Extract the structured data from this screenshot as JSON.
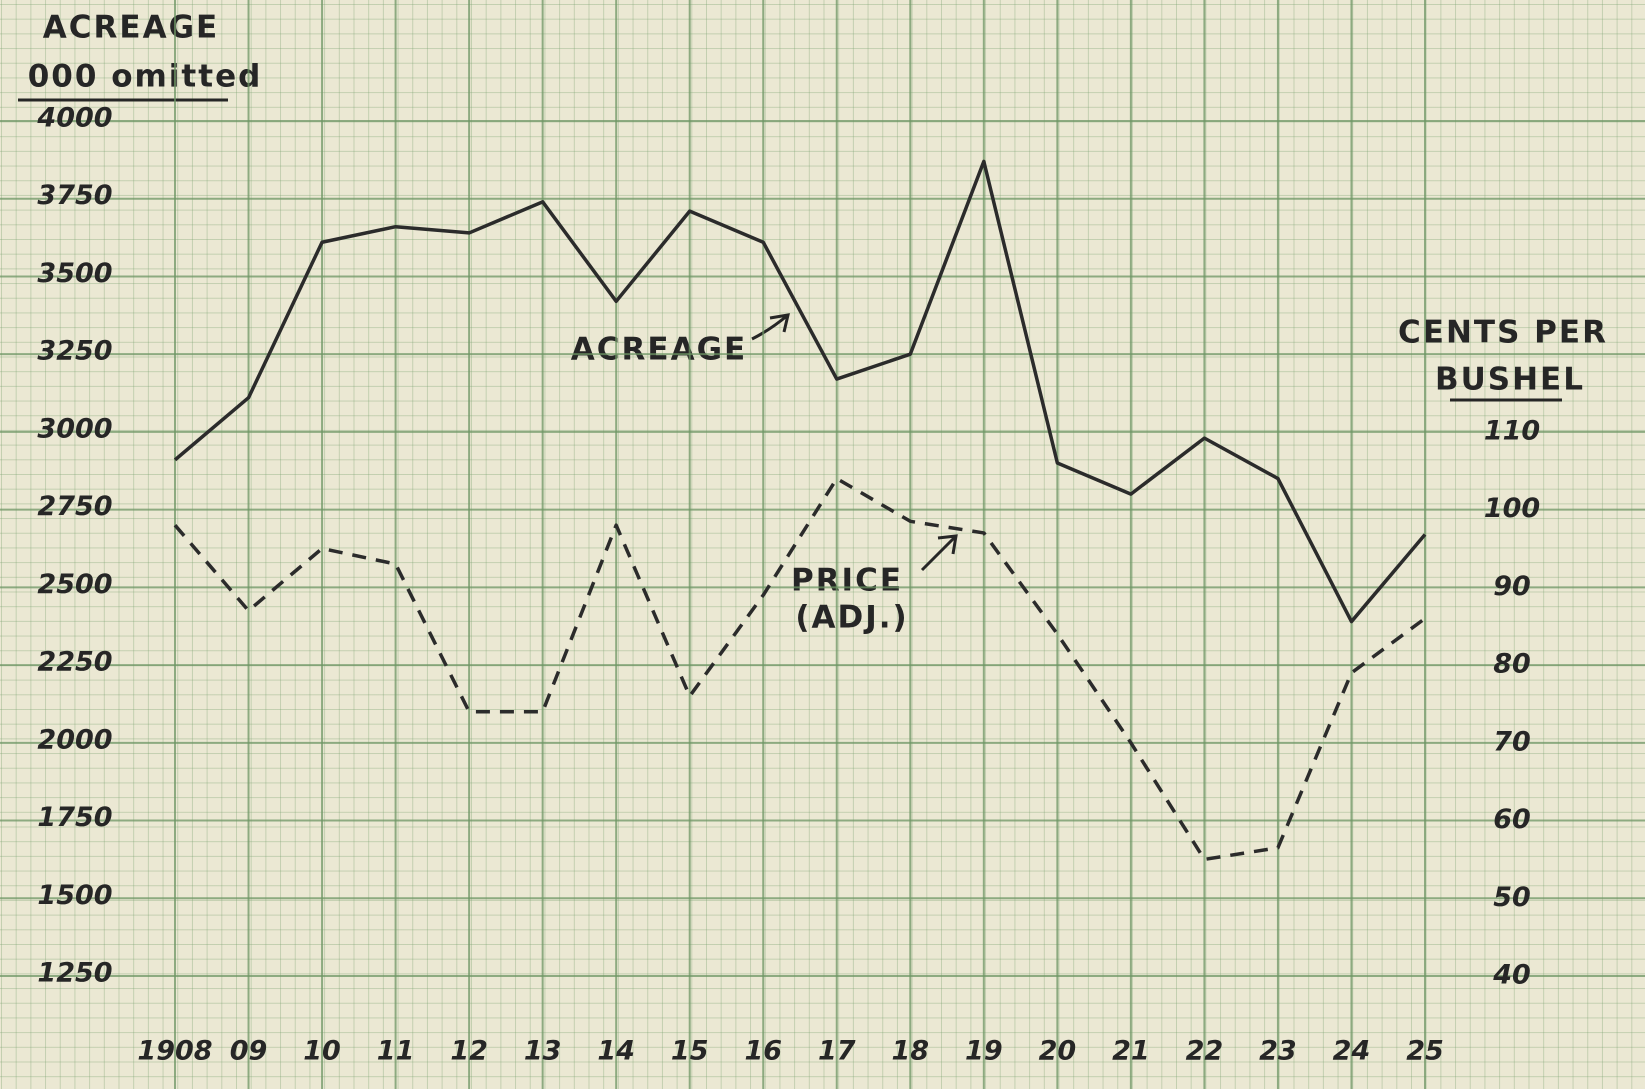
{
  "chart_data": {
    "type": "line",
    "y_label": "ACREAGE",
    "y_label_sub": "000 omitted",
    "y2_label": "CENTS PER",
    "y2_label_sub": "BUSHEL",
    "categories": [
      "1908",
      "09",
      "10",
      "11",
      "12",
      "13",
      "14",
      "15",
      "16",
      "17",
      "18",
      "19",
      "20",
      "21",
      "22",
      "23",
      "24",
      "25"
    ],
    "series": [
      {
        "name": "ACREAGE",
        "color": "#2b2b2b",
        "style": "solid",
        "axis": "y",
        "values": [
          2910,
          3110,
          3610,
          3660,
          3640,
          3740,
          3420,
          3710,
          3610,
          3170,
          3250,
          3870,
          2900,
          2800,
          2980,
          2850,
          2390,
          2670
        ]
      },
      {
        "name": "PRICE",
        "color": "#2b2b2b",
        "style": "dashed",
        "axis": "y2",
        "values": [
          98,
          87,
          95,
          93,
          74,
          74,
          98,
          76,
          89,
          104,
          98.5,
          97,
          84,
          70,
          55,
          56.5,
          79,
          86
        ]
      }
    ],
    "annotations": [
      "(ADJ.)"
    ],
    "ylim": [
      1250,
      4000
    ],
    "yticks": [
      1250,
      1500,
      1750,
      2000,
      2250,
      2500,
      2750,
      3000,
      3250,
      3500,
      3750,
      4000
    ],
    "y2lim": [
      40,
      150
    ],
    "y2ticks": [
      40,
      50,
      60,
      70,
      80,
      90,
      100,
      110
    ],
    "grid": true
  }
}
